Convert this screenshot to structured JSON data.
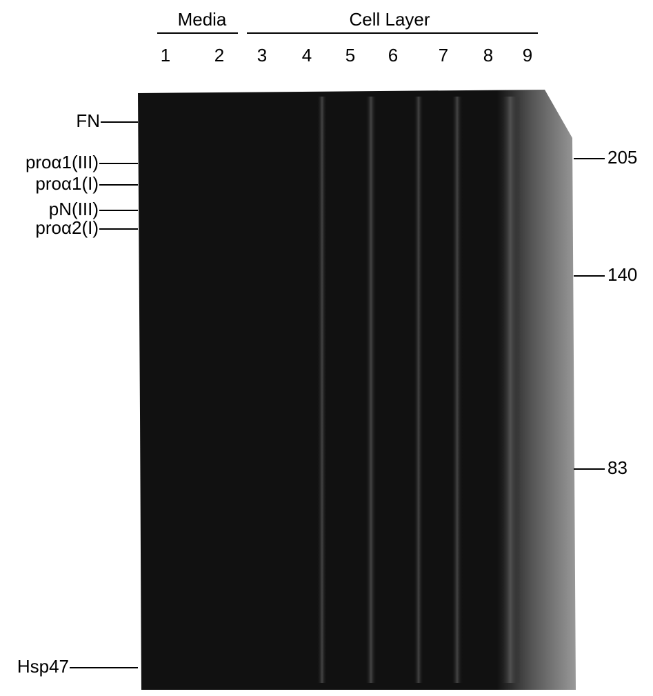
{
  "header": {
    "groups": [
      "Media",
      "Cell Layer"
    ],
    "lanes": [
      "1",
      "2",
      "3",
      "4",
      "5",
      "6",
      "7",
      "8",
      "9"
    ]
  },
  "left_labels": [
    "FN",
    "proα1(III)",
    "proα1(I)",
    "pN(III)",
    "proα2(I)",
    "Hsp47"
  ],
  "markers": [
    205,
    140,
    83
  ]
}
